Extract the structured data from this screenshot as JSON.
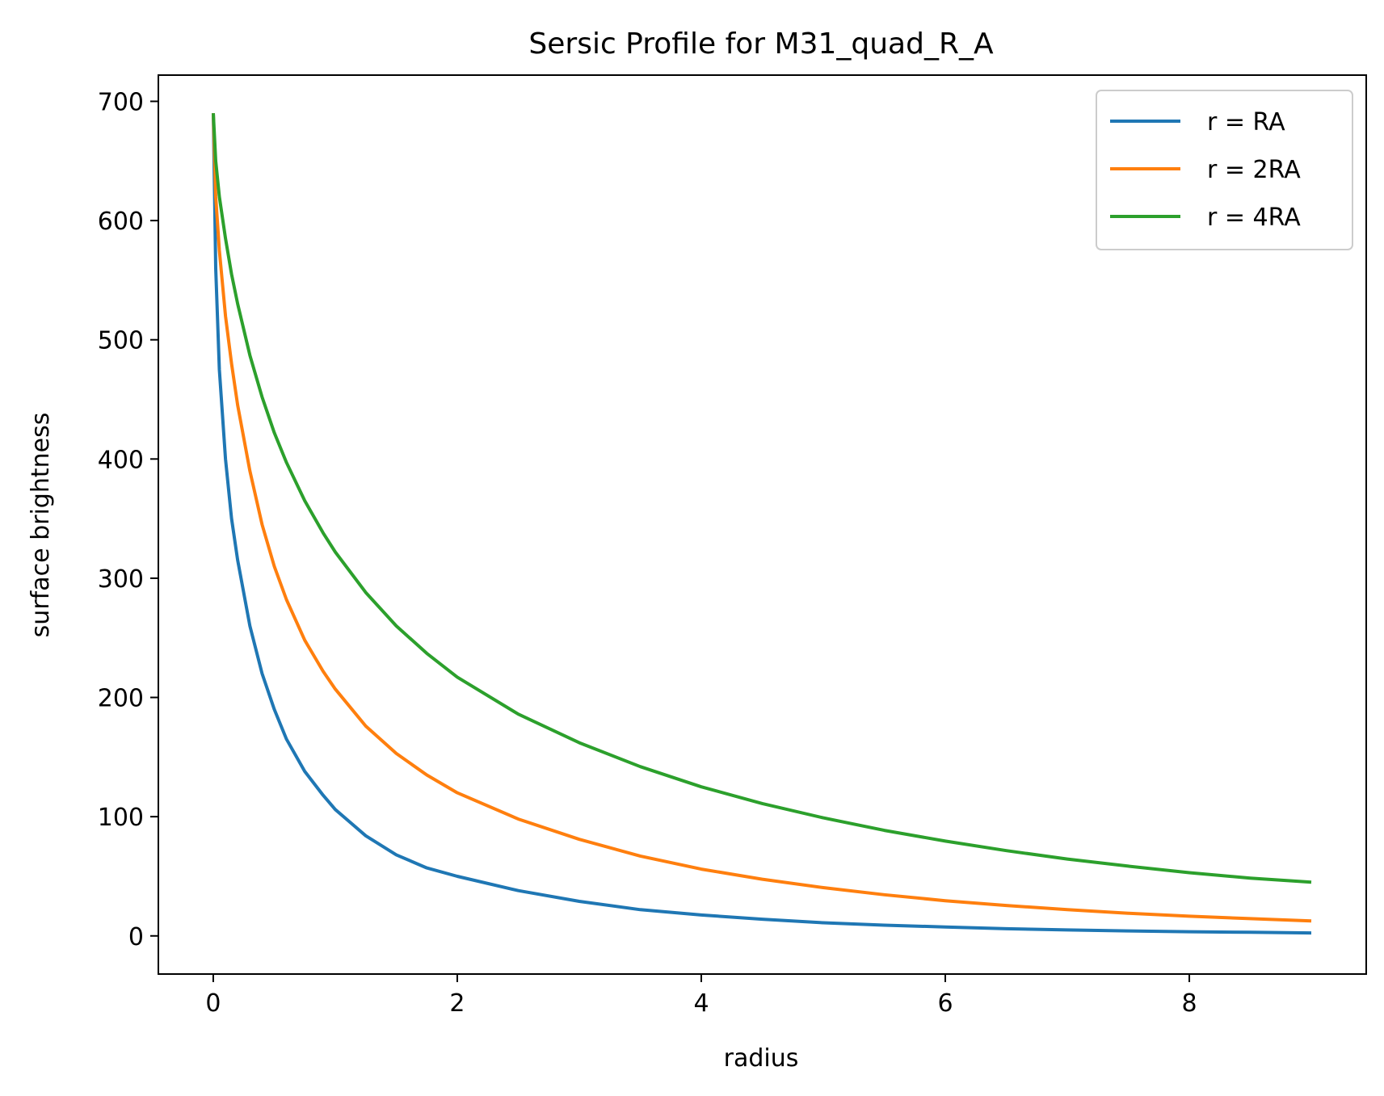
{
  "chart_data": {
    "type": "line",
    "title": "Sersic Profile for M31_quad_R_A",
    "xlabel": "radius",
    "ylabel": "surface brightness",
    "xlim": [
      -0.45,
      9.45
    ],
    "ylim": [
      -32,
      722
    ],
    "xticks": [
      0,
      2,
      4,
      6,
      8
    ],
    "yticks": [
      0,
      100,
      200,
      300,
      400,
      500,
      600,
      700
    ],
    "grid": false,
    "legend_position": "top-right",
    "series": [
      {
        "name": "r = RA",
        "color": "#1f77b4",
        "points": [
          [
            0.0,
            690
          ],
          [
            0.02,
            560
          ],
          [
            0.05,
            475
          ],
          [
            0.1,
            400
          ],
          [
            0.15,
            350
          ],
          [
            0.2,
            315
          ],
          [
            0.3,
            260
          ],
          [
            0.4,
            220
          ],
          [
            0.5,
            190
          ],
          [
            0.6,
            165
          ],
          [
            0.75,
            138
          ],
          [
            0.9,
            118
          ],
          [
            1.0,
            106
          ],
          [
            1.25,
            84
          ],
          [
            1.5,
            68
          ],
          [
            1.75,
            57
          ],
          [
            2.0,
            50
          ],
          [
            2.5,
            38
          ],
          [
            3.0,
            29
          ],
          [
            3.5,
            22
          ],
          [
            4.0,
            17.5
          ],
          [
            4.5,
            14
          ],
          [
            5.0,
            11
          ],
          [
            5.5,
            9
          ],
          [
            6.0,
            7.5
          ],
          [
            6.5,
            6
          ],
          [
            7.0,
            5
          ],
          [
            7.5,
            4.2
          ],
          [
            8.0,
            3.5
          ],
          [
            8.5,
            3
          ],
          [
            9.0,
            2.5
          ]
        ]
      },
      {
        "name": "r = 2RA",
        "color": "#ff7f0e",
        "points": [
          [
            0.0,
            690
          ],
          [
            0.02,
            620
          ],
          [
            0.05,
            575
          ],
          [
            0.1,
            520
          ],
          [
            0.15,
            480
          ],
          [
            0.2,
            445
          ],
          [
            0.3,
            390
          ],
          [
            0.4,
            345
          ],
          [
            0.5,
            310
          ],
          [
            0.6,
            282
          ],
          [
            0.75,
            248
          ],
          [
            0.9,
            222
          ],
          [
            1.0,
            207
          ],
          [
            1.25,
            176
          ],
          [
            1.5,
            153
          ],
          [
            1.75,
            135
          ],
          [
            2.0,
            120
          ],
          [
            2.5,
            98
          ],
          [
            3.0,
            81
          ],
          [
            3.5,
            67
          ],
          [
            4.0,
            56
          ],
          [
            4.5,
            47.5
          ],
          [
            5.0,
            40.5
          ],
          [
            5.5,
            34.5
          ],
          [
            6.0,
            29.5
          ],
          [
            6.5,
            25.5
          ],
          [
            7.0,
            22
          ],
          [
            7.5,
            19
          ],
          [
            8.0,
            16.5
          ],
          [
            8.5,
            14.5
          ],
          [
            9.0,
            12.5
          ]
        ]
      },
      {
        "name": "r = 4RA",
        "color": "#2ca02c",
        "points": [
          [
            0.0,
            690
          ],
          [
            0.02,
            650
          ],
          [
            0.05,
            620
          ],
          [
            0.1,
            585
          ],
          [
            0.15,
            555
          ],
          [
            0.2,
            530
          ],
          [
            0.3,
            487
          ],
          [
            0.4,
            452
          ],
          [
            0.5,
            422
          ],
          [
            0.6,
            397
          ],
          [
            0.75,
            365
          ],
          [
            0.9,
            338
          ],
          [
            1.0,
            322
          ],
          [
            1.25,
            288
          ],
          [
            1.5,
            260
          ],
          [
            1.75,
            237
          ],
          [
            2.0,
            217
          ],
          [
            2.5,
            186
          ],
          [
            3.0,
            162
          ],
          [
            3.5,
            142
          ],
          [
            4.0,
            125
          ],
          [
            4.5,
            111
          ],
          [
            5.0,
            99
          ],
          [
            5.5,
            88.5
          ],
          [
            6.0,
            79.5
          ],
          [
            6.5,
            71.5
          ],
          [
            7.0,
            64.5
          ],
          [
            7.5,
            58.5
          ],
          [
            8.0,
            53
          ],
          [
            8.5,
            48.5
          ],
          [
            9.0,
            45
          ]
        ]
      }
    ]
  }
}
